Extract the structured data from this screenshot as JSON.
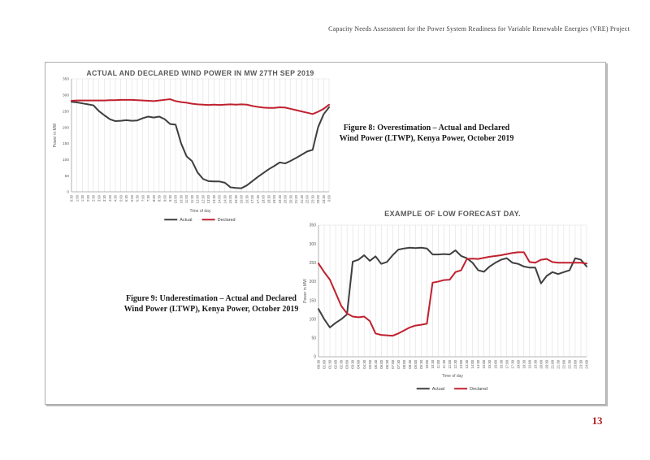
{
  "header": {
    "text": "Capacity Needs Assessment for the Power System Readiness for Variable Renewable Energies (VRE) Project"
  },
  "page_number": "13",
  "figures": [
    {
      "caption_lines": [
        "Figure 8: Overestimation – Actual and Declared",
        "Wind Power (LTWP), Kenya Power, October 2019"
      ]
    },
    {
      "caption_lines": [
        "Figure 9: Underestimation – Actual and Declared",
        "Wind Power (LTWP), Kenya Power, October 2019"
      ]
    }
  ],
  "colors": {
    "actual_line": "#3f3f3f",
    "declared_line": "#c0212f",
    "grid": "#d9d9d9",
    "axis_text": "#595959",
    "title_text": "#595959",
    "legend_text": "#404040",
    "page_number": "#b22222"
  },
  "chart_data": [
    {
      "type": "line",
      "title": "ACTUAL AND DECLARED WIND POWER IN MW 27TH SEP 2019",
      "xlabel": "Time of day",
      "ylabel": "Power in MW",
      "ylim": [
        0,
        350
      ],
      "yticks": [
        0,
        50,
        100,
        150,
        200,
        250,
        300,
        350
      ],
      "grid": "vertical",
      "legend_position": "bottom",
      "categories": [
        "0:30",
        "1:00",
        "1:30",
        "2:00",
        "2:30",
        "3:00",
        "3:30",
        "4:00",
        "4:30",
        "5:00",
        "5:30",
        "6:00",
        "6:30",
        "7:00",
        "7:30",
        "8:00",
        "8:30",
        "9:00",
        "9:30",
        "10:00",
        "10:30",
        "11:00",
        "11:30",
        "12:00",
        "12:30",
        "13:00",
        "13:30",
        "14:00",
        "14:30",
        "15:00",
        "15:30",
        "16:00",
        "16:30",
        "17:00",
        "17:30",
        "18:00",
        "18:30",
        "19:00",
        "19:30",
        "20:00",
        "20:30",
        "21:00",
        "21:30",
        "22:00",
        "22:30",
        "23:00",
        "23:30",
        "0:00"
      ],
      "series": [
        {
          "name": "Actual",
          "color": "#3f3f3f",
          "values": [
            279,
            277,
            274,
            271,
            268,
            250,
            237,
            225,
            219,
            220,
            222,
            220,
            221,
            228,
            233,
            230,
            233,
            225,
            210,
            208,
            150,
            110,
            95,
            60,
            40,
            33,
            32,
            32,
            28,
            14,
            12,
            11,
            20,
            33,
            46,
            58,
            70,
            80,
            91,
            88,
            96,
            105,
            115,
            125,
            130,
            200,
            240,
            262
          ]
        },
        {
          "name": "Declared",
          "color": "#c0212f",
          "values": [
            282,
            283,
            283,
            283,
            283,
            283,
            283,
            284,
            284,
            285,
            285,
            285,
            284,
            283,
            282,
            281,
            283,
            285,
            287,
            281,
            278,
            276,
            273,
            271,
            270,
            269,
            270,
            269,
            270,
            271,
            270,
            271,
            270,
            266,
            263,
            261,
            260,
            260,
            262,
            261,
            257,
            253,
            249,
            245,
            241,
            248,
            257,
            270
          ]
        }
      ]
    },
    {
      "type": "line",
      "title": "EXAMPLE OF LOW FORECAST DAY.",
      "xlabel": "Time of day",
      "ylabel": "Power in MW",
      "ylim": [
        0,
        350
      ],
      "yticks": [
        0,
        50,
        100,
        150,
        200,
        250,
        300,
        350
      ],
      "grid": "vertical",
      "legend_position": "bottom",
      "categories": [
        "00:30",
        "01:00",
        "01:30",
        "02:00",
        "02:30",
        "03:00",
        "03:30",
        "04:00",
        "04:30",
        "05:00",
        "05:30",
        "06:00",
        "06:30",
        "07:00",
        "07:30",
        "08:00",
        "08:30",
        "09:00",
        "09:30",
        "10:00",
        "10:30",
        "11:00",
        "11:30",
        "12:00",
        "12:30",
        "13:00",
        "13:30",
        "14:00",
        "14:30",
        "15:00",
        "15:30",
        "16:00",
        "16:30",
        "17:00",
        "17:30",
        "18:00",
        "18:30",
        "19:00",
        "19:30",
        "20:00",
        "20:30",
        "21:00",
        "21:30",
        "22:00",
        "22:30",
        "23:00",
        "23:30",
        "24:00"
      ],
      "series": [
        {
          "name": "Actual",
          "color": "#3f3f3f",
          "values": [
            127,
            100,
            78,
            90,
            100,
            113,
            253,
            258,
            270,
            255,
            267,
            247,
            252,
            270,
            285,
            288,
            290,
            289,
            290,
            288,
            272,
            272,
            273,
            272,
            283,
            268,
            262,
            250,
            230,
            226,
            240,
            250,
            258,
            262,
            250,
            247,
            240,
            237,
            237,
            195,
            215,
            225,
            220,
            225,
            230,
            262,
            258,
            240
          ]
        },
        {
          "name": "Declared",
          "color": "#c0212f",
          "values": [
            248,
            225,
            205,
            170,
            135,
            115,
            107,
            105,
            107,
            95,
            62,
            58,
            57,
            56,
            62,
            70,
            78,
            83,
            85,
            88,
            197,
            200,
            204,
            205,
            225,
            230,
            260,
            261,
            260,
            263,
            266,
            268,
            270,
            273,
            276,
            278,
            278,
            252,
            250,
            258,
            260,
            252,
            250,
            250,
            250,
            250,
            250,
            248
          ]
        }
      ]
    }
  ]
}
